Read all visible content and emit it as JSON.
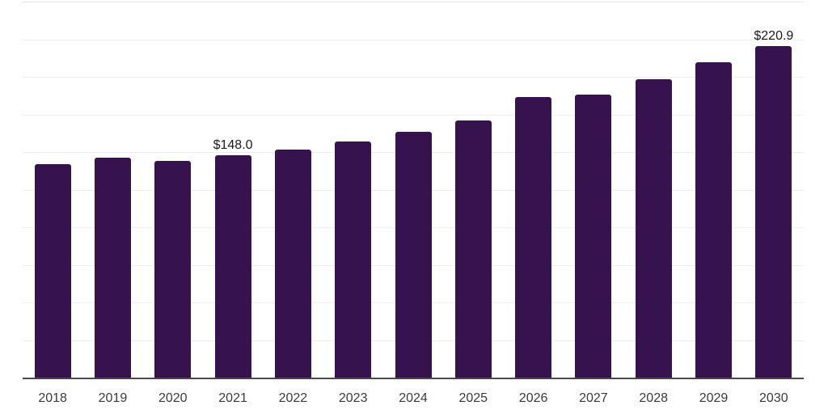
{
  "chart_data": {
    "type": "bar",
    "title": "",
    "xlabel": "",
    "ylabel": "",
    "categories": [
      "2018",
      "2019",
      "2020",
      "2021",
      "2022",
      "2023",
      "2024",
      "2025",
      "2026",
      "2027",
      "2028",
      "2029",
      "2030"
    ],
    "values": [
      142.1,
      146.8,
      144.5,
      148.0,
      152.1,
      157.4,
      163.9,
      171.2,
      186.9,
      188.7,
      198.5,
      209.8,
      220.9
    ],
    "data_labels": {
      "2021": "$148.0",
      "2030": "$220.9"
    },
    "ylim": [
      0,
      250
    ],
    "gridline_step": 25,
    "grid": "horizontal",
    "legend": "none",
    "y_axis_tick_labels": "none",
    "colors": {
      "bar": "#36124e",
      "axis_line": "#4a4a4a",
      "gridline": "#eeeeee",
      "top_gridline": "#e3e3e3",
      "tick_label": "#3a3a3a",
      "value_label": "#1a1a1a",
      "background": "#ffffff"
    }
  }
}
